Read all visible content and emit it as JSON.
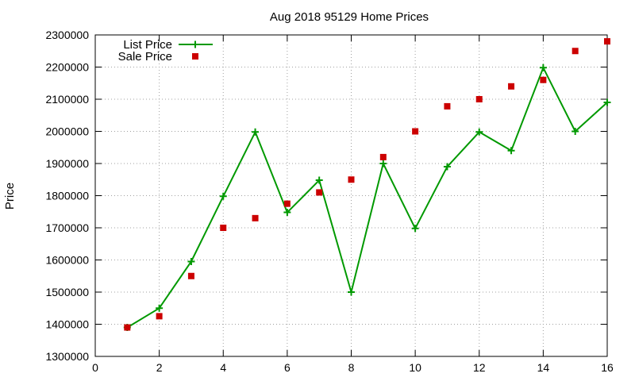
{
  "chart_data": {
    "type": "line",
    "title": "Aug 2018 95129 Home Prices",
    "xlabel": "",
    "ylabel": "Price",
    "xlim": [
      0,
      16
    ],
    "ylim": [
      1300000,
      2300000
    ],
    "xticks": [
      0,
      2,
      4,
      6,
      8,
      10,
      12,
      14,
      16
    ],
    "yticks": [
      1300000,
      1400000,
      1500000,
      1600000,
      1700000,
      1800000,
      1900000,
      2000000,
      2100000,
      2200000,
      2300000
    ],
    "grid": true,
    "legend_position": "top-left",
    "series": [
      {
        "name": "List Price",
        "style": "line-with-plus-markers",
        "color": "#009900",
        "x": [
          1,
          2,
          3,
          4,
          5,
          6,
          7,
          8,
          9,
          10,
          11,
          12,
          13,
          14,
          15,
          16
        ],
        "values": [
          1390000,
          1450000,
          1595000,
          1798000,
          1998000,
          1748000,
          1848000,
          1500000,
          1900000,
          1698000,
          1890000,
          1998000,
          1940000,
          2198000,
          2000000,
          2090000
        ]
      },
      {
        "name": "Sale Price",
        "style": "square-markers",
        "color": "#cc0000",
        "x": [
          1,
          2,
          3,
          4,
          5,
          6,
          7,
          8,
          9,
          10,
          11,
          12,
          13,
          14,
          15,
          16
        ],
        "values": [
          1390000,
          1425000,
          1550000,
          1700000,
          1730000,
          1775000,
          1810000,
          1850000,
          1920000,
          2000000,
          2078000,
          2100000,
          2140000,
          2160000,
          2250000,
          2280000
        ]
      }
    ]
  }
}
